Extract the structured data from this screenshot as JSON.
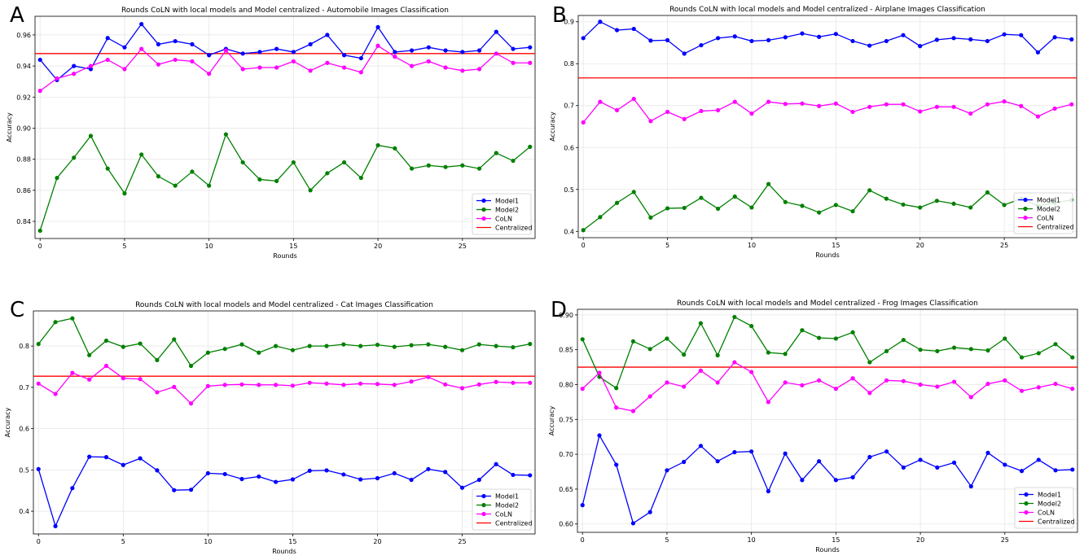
{
  "figure": {
    "panels": [
      {
        "letter": "A"
      },
      {
        "letter": "B"
      },
      {
        "letter": "C"
      },
      {
        "letter": "D"
      }
    ]
  },
  "colors": {
    "model1": "#0000ff",
    "model2": "#008000",
    "coln": "#ff00ff",
    "centralized": "#ff0000",
    "grid": "#e6e6e6"
  },
  "chart_data": [
    {
      "type": "line",
      "title": "Rounds CoLN with local models and Model centralized - Automobile Images Classification",
      "xlabel": "Rounds",
      "ylabel": "Accuracy",
      "xlim": [
        -0.3,
        29.3
      ],
      "ylim": [
        0.829,
        0.972
      ],
      "xticks": [
        0,
        5,
        10,
        15,
        20,
        25
      ],
      "yticks": [
        0.84,
        0.86,
        0.88,
        0.9,
        0.92,
        0.94,
        0.96
      ],
      "ytick_labels": [
        "0.84",
        "0.86",
        "0.88",
        "0.90",
        "0.92",
        "0.94",
        "0.96"
      ],
      "grid": true,
      "legend": "bottom-right",
      "series": [
        {
          "name": "Model1",
          "color": "#0000ff",
          "values": [
            0.944,
            0.931,
            0.94,
            0.938,
            0.958,
            0.952,
            0.967,
            0.954,
            0.956,
            0.954,
            0.947,
            0.951,
            0.948,
            0.949,
            0.951,
            0.949,
            0.954,
            0.96,
            0.947,
            0.945,
            0.965,
            0.949,
            0.95,
            0.952,
            0.95,
            0.949,
            0.95,
            0.962,
            0.951,
            0.952
          ]
        },
        {
          "name": "Model2",
          "color": "#008000",
          "values": [
            0.834,
            0.868,
            0.881,
            0.895,
            0.874,
            0.858,
            0.883,
            0.869,
            0.863,
            0.872,
            0.863,
            0.896,
            0.878,
            0.867,
            0.866,
            0.878,
            0.86,
            0.871,
            0.878,
            0.868,
            0.889,
            0.887,
            0.874,
            0.876,
            0.875,
            0.876,
            0.874,
            0.884,
            0.879,
            0.888
          ]
        },
        {
          "name": "CoLN",
          "color": "#ff00ff",
          "values": [
            0.924,
            0.932,
            0.935,
            0.94,
            0.944,
            0.938,
            0.951,
            0.941,
            0.944,
            0.943,
            0.935,
            0.95,
            0.938,
            0.939,
            0.939,
            0.943,
            0.937,
            0.942,
            0.939,
            0.936,
            0.953,
            0.946,
            0.94,
            0.943,
            0.939,
            0.937,
            0.938,
            0.948,
            0.942,
            0.942
          ]
        }
      ],
      "reference_line": {
        "name": "Centralized",
        "color": "#ff0000",
        "value": 0.948
      }
    },
    {
      "type": "line",
      "title": "Rounds CoLN with local models and Model centralized - Airplane Images Classification",
      "xlabel": "Rounds",
      "ylabel": "Accuracy",
      "xlim": [
        -0.3,
        29.3
      ],
      "ylim": [
        0.385,
        0.915
      ],
      "xticks": [
        0,
        5,
        10,
        15,
        20,
        25
      ],
      "yticks": [
        0.4,
        0.5,
        0.6,
        0.7,
        0.8,
        0.9
      ],
      "ytick_labels": [
        "0.4",
        "0.5",
        "0.6",
        "0.7",
        "0.8",
        "0.9"
      ],
      "grid": true,
      "legend": "bottom-right",
      "series": [
        {
          "name": "Model1",
          "color": "#0000ff",
          "values": [
            0.861,
            0.9,
            0.88,
            0.883,
            0.855,
            0.856,
            0.824,
            0.844,
            0.861,
            0.865,
            0.854,
            0.856,
            0.863,
            0.872,
            0.864,
            0.871,
            0.854,
            0.843,
            0.854,
            0.868,
            0.842,
            0.857,
            0.861,
            0.858,
            0.854,
            0.87,
            0.868,
            0.827,
            0.863,
            0.858
          ]
        },
        {
          "name": "Model2",
          "color": "#008000",
          "values": [
            0.403,
            0.434,
            0.468,
            0.494,
            0.433,
            0.455,
            0.456,
            0.48,
            0.454,
            0.483,
            0.457,
            0.513,
            0.47,
            0.461,
            0.445,
            0.463,
            0.448,
            0.498,
            0.478,
            0.464,
            0.457,
            0.473,
            0.466,
            0.457,
            0.493,
            0.463,
            0.478,
            0.461,
            0.468,
            0.475
          ]
        },
        {
          "name": "CoLN",
          "color": "#ff00ff",
          "values": [
            0.66,
            0.709,
            0.689,
            0.716,
            0.663,
            0.685,
            0.668,
            0.687,
            0.689,
            0.709,
            0.681,
            0.709,
            0.704,
            0.705,
            0.699,
            0.705,
            0.685,
            0.697,
            0.703,
            0.703,
            0.686,
            0.697,
            0.697,
            0.681,
            0.703,
            0.71,
            0.699,
            0.674,
            0.693,
            0.703
          ]
        }
      ],
      "reference_line": {
        "name": "Centralized",
        "color": "#ff0000",
        "value": 0.766
      }
    },
    {
      "type": "line",
      "title": "Rounds CoLN with local models and Model centralized - Cat Images Classification",
      "xlabel": "Rounds",
      "ylabel": "Accuracy",
      "xlim": [
        -0.3,
        29.3
      ],
      "ylim": [
        0.345,
        0.885
      ],
      "xticks": [
        0,
        5,
        10,
        15,
        20,
        25
      ],
      "yticks": [
        0.4,
        0.5,
        0.6,
        0.7,
        0.8
      ],
      "ytick_labels": [
        "0.4",
        "0.5",
        "0.6",
        "0.7",
        "0.8"
      ],
      "grid": true,
      "legend": "bottom-right",
      "series": [
        {
          "name": "Model1",
          "color": "#0000ff",
          "values": [
            0.502,
            0.364,
            0.456,
            0.532,
            0.531,
            0.512,
            0.528,
            0.499,
            0.451,
            0.452,
            0.492,
            0.49,
            0.478,
            0.484,
            0.471,
            0.477,
            0.498,
            0.499,
            0.489,
            0.477,
            0.48,
            0.492,
            0.476,
            0.502,
            0.495,
            0.457,
            0.476,
            0.514,
            0.488,
            0.487
          ]
        },
        {
          "name": "Model2",
          "color": "#008000",
          "values": [
            0.805,
            0.858,
            0.867,
            0.778,
            0.813,
            0.798,
            0.806,
            0.766,
            0.816,
            0.752,
            0.784,
            0.793,
            0.804,
            0.784,
            0.8,
            0.79,
            0.8,
            0.8,
            0.804,
            0.8,
            0.803,
            0.798,
            0.802,
            0.804,
            0.798,
            0.79,
            0.804,
            0.8,
            0.797,
            0.805
          ]
        },
        {
          "name": "CoLN",
          "color": "#ff00ff",
          "values": [
            0.709,
            0.684,
            0.735,
            0.719,
            0.752,
            0.722,
            0.72,
            0.688,
            0.701,
            0.661,
            0.703,
            0.706,
            0.707,
            0.706,
            0.706,
            0.704,
            0.711,
            0.709,
            0.706,
            0.709,
            0.708,
            0.706,
            0.714,
            0.725,
            0.707,
            0.698,
            0.707,
            0.713,
            0.711,
            0.711
          ]
        }
      ],
      "reference_line": {
        "name": "Centralized",
        "color": "#ff0000",
        "value": 0.727
      }
    },
    {
      "type": "line",
      "title": "Rounds CoLN with local models and Model centralized - Frog Images Classification",
      "xlabel": "Rounds",
      "ylabel": "Accuracy",
      "xlim": [
        -0.3,
        29.3
      ],
      "ylim": [
        0.588,
        0.908
      ],
      "xticks": [
        0,
        5,
        10,
        15,
        20,
        25
      ],
      "yticks": [
        0.6,
        0.65,
        0.7,
        0.75,
        0.8,
        0.85,
        0.9
      ],
      "ytick_labels": [
        "0.60",
        "0.65",
        "0.70",
        "0.75",
        "0.80",
        "0.85",
        "0.90"
      ],
      "grid": true,
      "legend": "bottom-right",
      "series": [
        {
          "name": "Model1",
          "color": "#0000ff",
          "values": [
            0.627,
            0.727,
            0.685,
            0.601,
            0.617,
            0.677,
            0.689,
            0.712,
            0.69,
            0.703,
            0.704,
            0.647,
            0.701,
            0.663,
            0.69,
            0.663,
            0.667,
            0.696,
            0.704,
            0.681,
            0.692,
            0.681,
            0.688,
            0.654,
            0.702,
            0.685,
            0.676,
            0.692,
            0.677,
            0.678
          ]
        },
        {
          "name": "Model2",
          "color": "#008000",
          "values": [
            0.865,
            0.811,
            0.795,
            0.862,
            0.851,
            0.866,
            0.843,
            0.888,
            0.842,
            0.897,
            0.884,
            0.846,
            0.844,
            0.878,
            0.867,
            0.866,
            0.875,
            0.832,
            0.848,
            0.864,
            0.85,
            0.848,
            0.853,
            0.851,
            0.849,
            0.866,
            0.839,
            0.845,
            0.858,
            0.839
          ]
        },
        {
          "name": "CoLN",
          "color": "#ff00ff",
          "values": [
            0.794,
            0.817,
            0.767,
            0.762,
            0.783,
            0.803,
            0.797,
            0.82,
            0.803,
            0.832,
            0.818,
            0.775,
            0.803,
            0.799,
            0.806,
            0.794,
            0.809,
            0.788,
            0.806,
            0.805,
            0.8,
            0.797,
            0.804,
            0.782,
            0.801,
            0.806,
            0.791,
            0.796,
            0.801,
            0.794
          ]
        }
      ],
      "reference_line": {
        "name": "Centralized",
        "color": "#ff0000",
        "value": 0.825
      }
    }
  ]
}
